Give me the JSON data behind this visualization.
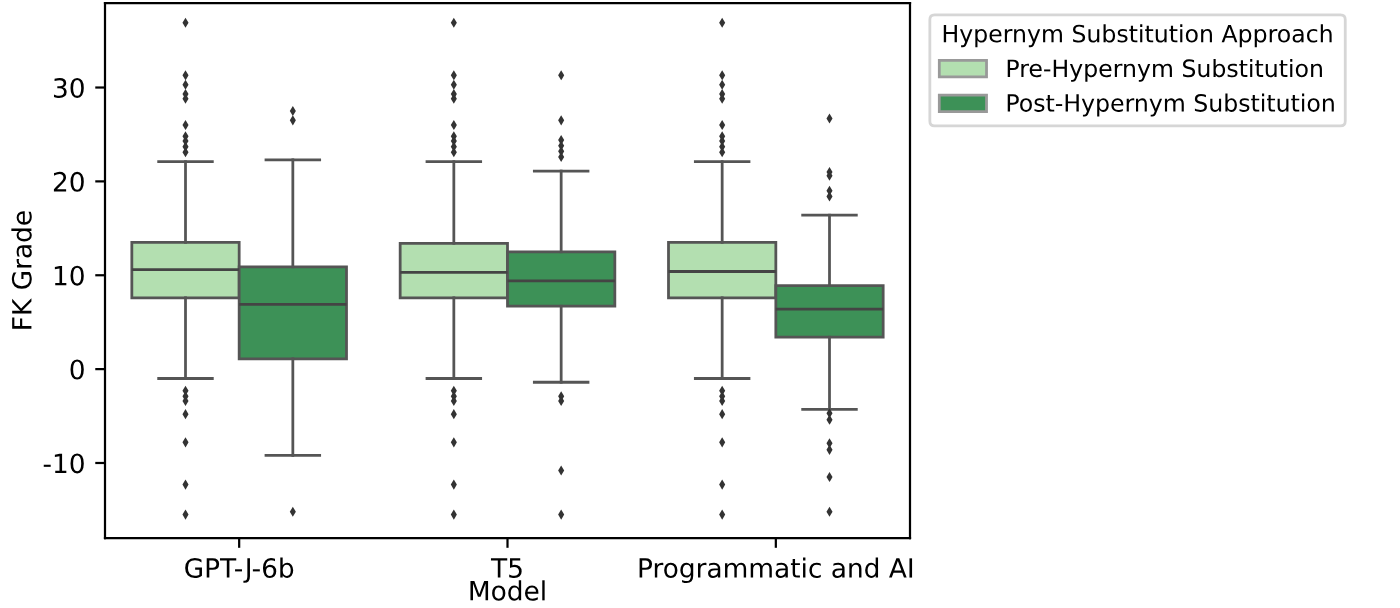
{
  "chart_data": {
    "type": "box",
    "xlabel": "Model",
    "ylabel": "FK Grade",
    "legend_title": "Hypernym Substitution Approach",
    "legend": "top right",
    "grid": false,
    "categories": [
      "GPT-J-6b",
      "T5",
      "Programmatic and AI"
    ],
    "ylim": [
      -18,
      39
    ],
    "yticks": [
      -10,
      0,
      10,
      20,
      30
    ],
    "series": [
      {
        "name": "Pre-Hypernym Substitution",
        "color": "#b3dfb0",
        "boxes": [
          {
            "low": -1.0,
            "q1": 7.6,
            "median": 10.6,
            "q3": 13.5,
            "high": 22.1,
            "outliers": [
              36.9,
              31.3,
              30.3,
              29.3,
              28.8,
              26.0,
              24.8,
              24.3,
              23.7,
              23.1,
              -2.3,
              -2.9,
              -3.4,
              -4.8,
              -7.8,
              -12.3,
              -15.5
            ]
          },
          {
            "low": -1.0,
            "q1": 7.6,
            "median": 10.3,
            "q3": 13.4,
            "high": 22.1,
            "outliers": [
              36.9,
              31.3,
              30.3,
              29.3,
              28.8,
              26.0,
              24.8,
              24.3,
              23.7,
              23.1,
              -2.3,
              -2.9,
              -3.4,
              -4.8,
              -7.8,
              -12.3,
              -15.5
            ]
          },
          {
            "low": -1.0,
            "q1": 7.6,
            "median": 10.4,
            "q3": 13.5,
            "high": 22.1,
            "outliers": [
              36.9,
              31.3,
              30.3,
              29.3,
              28.8,
              26.0,
              24.8,
              24.3,
              23.7,
              23.1,
              -2.3,
              -2.9,
              -3.4,
              -4.8,
              -7.8,
              -12.3,
              -15.5
            ]
          }
        ]
      },
      {
        "name": "Post-Hypernym Substitution",
        "color": "#3d9157",
        "boxes": [
          {
            "low": -9.2,
            "q1": 1.1,
            "median": 6.9,
            "q3": 10.9,
            "high": 22.3,
            "outliers": [
              27.5,
              26.5,
              -15.2
            ]
          },
          {
            "low": -1.4,
            "q1": 6.7,
            "median": 9.4,
            "q3": 12.5,
            "high": 21.1,
            "outliers": [
              31.3,
              26.5,
              24.4,
              23.8,
              23.2,
              22.6,
              -2.9,
              -3.4,
              -10.8,
              -15.5
            ]
          },
          {
            "low": -4.3,
            "q1": 3.4,
            "median": 6.4,
            "q3": 8.9,
            "high": 16.4,
            "outliers": [
              26.7,
              21.0,
              20.6,
              19.0,
              18.4,
              -4.7,
              -5.4,
              -7.9,
              -8.6,
              -11.5,
              -15.2
            ]
          }
        ]
      }
    ]
  }
}
